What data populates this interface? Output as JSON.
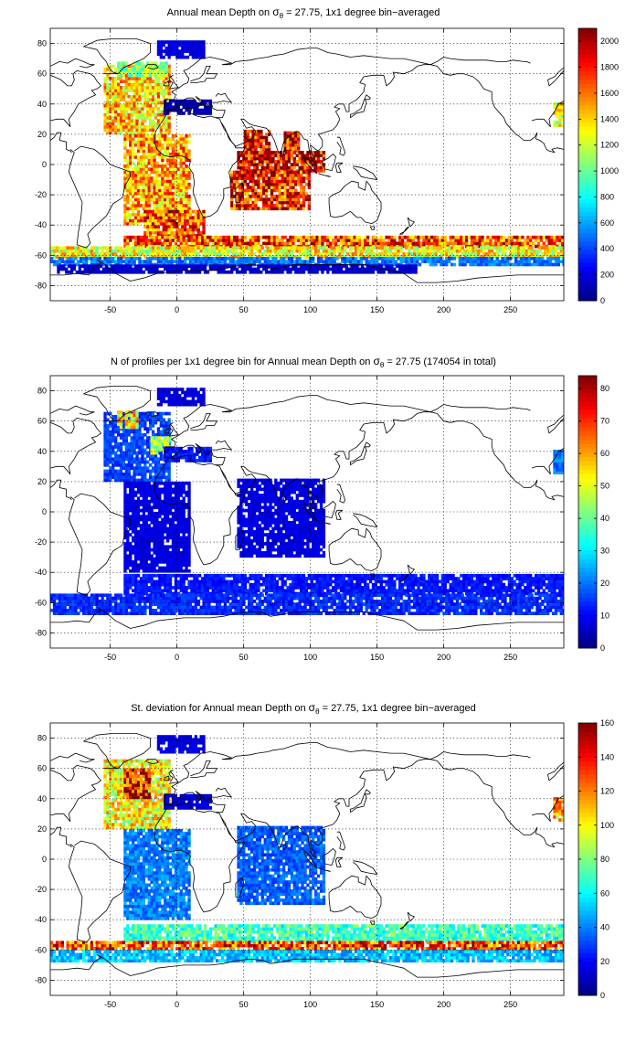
{
  "chart_data": [
    {
      "type": "heatmap",
      "title_prefix": "Annual mean Depth on",
      "title_symbol": "σ",
      "title_subscript": "θ",
      "title_suffix": "= 27.75, 1x1 degree bin−averaged",
      "x_ticks": [
        -50,
        0,
        50,
        100,
        150,
        200,
        250
      ],
      "y_ticks": [
        80,
        60,
        40,
        20,
        0,
        -20,
        -40,
        -60,
        -80
      ],
      "xlim": [
        -95,
        290
      ],
      "ylim": [
        -90,
        90
      ],
      "grid": true,
      "colorbar": {
        "min": 0,
        "max": 2100,
        "ticks": [
          0,
          200,
          400,
          600,
          800,
          1000,
          1200,
          1400,
          1600,
          1800,
          2000
        ],
        "colormap": "jet"
      },
      "regions": [
        {
          "x0": -55,
          "x1": -5,
          "y0": 20,
          "y1": 65,
          "v": 1420
        },
        {
          "x0": -45,
          "x1": -8,
          "y0": 58,
          "y1": 68,
          "v": 1100
        },
        {
          "x0": -40,
          "x1": 10,
          "y0": -40,
          "y1": 20,
          "v": 1500
        },
        {
          "x0": -25,
          "x1": 20,
          "y0": -48,
          "y1": -30,
          "v": 1700
        },
        {
          "x0": 50,
          "x1": 70,
          "y0": 5,
          "y1": 22,
          "v": 1950
        },
        {
          "x0": 80,
          "x1": 92,
          "y0": 8,
          "y1": 22,
          "v": 1900
        },
        {
          "x0": 45,
          "x1": 110,
          "y0": -5,
          "y1": 8,
          "v": 1950
        },
        {
          "x0": 40,
          "x1": 100,
          "y0": -30,
          "y1": -5,
          "v": 1800
        },
        {
          "x0": -40,
          "x1": 290,
          "y0": -55,
          "y1": -48,
          "v": 1700
        },
        {
          "x0": -95,
          "x1": 290,
          "y0": -62,
          "y1": -55,
          "v": 1300
        },
        {
          "x0": -95,
          "x1": 290,
          "y0": -67,
          "y1": -62,
          "v": 500
        },
        {
          "x0": -90,
          "x1": 180,
          "y0": -72,
          "y1": -67,
          "v": 150
        },
        {
          "x0": -10,
          "x1": 25,
          "y0": 33,
          "y1": 42,
          "v": 100
        },
        {
          "x0": -15,
          "x1": 20,
          "y0": 70,
          "y1": 82,
          "v": 200
        },
        {
          "x0": 282,
          "x1": 290,
          "y0": 25,
          "y1": 40,
          "v": 1250
        }
      ]
    },
    {
      "type": "heatmap",
      "title_prefix": "N of profiles per 1x1 degree bin for Annual mean Depth on",
      "title_symbol": "σ",
      "title_subscript": "θ",
      "title_suffix": "= 27.75 (174054 in total)",
      "x_ticks": [
        -50,
        0,
        50,
        100,
        150,
        200,
        250
      ],
      "y_ticks": [
        80,
        60,
        40,
        20,
        0,
        -20,
        -40,
        -60,
        -80
      ],
      "xlim": [
        -95,
        290
      ],
      "ylim": [
        -90,
        90
      ],
      "grid": true,
      "colorbar": {
        "min": 0,
        "max": 84,
        "ticks": [
          0,
          10,
          20,
          30,
          40,
          50,
          60,
          70,
          80
        ],
        "colormap": "jet"
      },
      "regions": [
        {
          "x0": -55,
          "x1": -5,
          "y0": 20,
          "y1": 65,
          "v": 16
        },
        {
          "x0": -45,
          "x1": -30,
          "y0": 55,
          "y1": 66,
          "v": 55
        },
        {
          "x0": -20,
          "x1": -5,
          "y0": 38,
          "y1": 50,
          "v": 45
        },
        {
          "x0": -40,
          "x1": 10,
          "y0": -40,
          "y1": 20,
          "v": 8
        },
        {
          "x0": 45,
          "x1": 110,
          "y0": -30,
          "y1": 22,
          "v": 8
        },
        {
          "x0": -40,
          "x1": 290,
          "y0": -55,
          "y1": -42,
          "v": 12
        },
        {
          "x0": -95,
          "x1": 290,
          "y0": -68,
          "y1": -55,
          "v": 14
        },
        {
          "x0": -10,
          "x1": 25,
          "y0": 33,
          "y1": 42,
          "v": 12
        },
        {
          "x0": -15,
          "x1": 20,
          "y0": 70,
          "y1": 82,
          "v": 8
        },
        {
          "x0": 282,
          "x1": 290,
          "y0": 25,
          "y1": 40,
          "v": 20
        }
      ]
    },
    {
      "type": "heatmap",
      "title_prefix": "St. deviation for Annual mean Depth on",
      "title_symbol": "σ",
      "title_subscript": "θ",
      "title_suffix": "= 27.75, 1x1 degree bin−averaged",
      "x_ticks": [
        -50,
        0,
        50,
        100,
        150,
        200,
        250
      ],
      "y_ticks": [
        80,
        60,
        40,
        20,
        0,
        -20,
        -40,
        -60,
        -80
      ],
      "xlim": [
        -95,
        290
      ],
      "ylim": [
        -90,
        90
      ],
      "grid": true,
      "colorbar": {
        "min": 0,
        "max": 160,
        "ticks": [
          0,
          20,
          40,
          60,
          80,
          100,
          120,
          140,
          160
        ],
        "colormap": "jet"
      },
      "regions": [
        {
          "x0": -55,
          "x1": -5,
          "y0": 20,
          "y1": 65,
          "v": 100
        },
        {
          "x0": -40,
          "x1": -20,
          "y0": 40,
          "y1": 60,
          "v": 140
        },
        {
          "x0": -40,
          "x1": 10,
          "y0": -40,
          "y1": 20,
          "v": 40
        },
        {
          "x0": 45,
          "x1": 110,
          "y0": -30,
          "y1": 22,
          "v": 35
        },
        {
          "x0": -40,
          "x1": 290,
          "y0": -55,
          "y1": -44,
          "v": 70
        },
        {
          "x0": -95,
          "x1": 290,
          "y0": -60,
          "y1": -55,
          "v": 130
        },
        {
          "x0": -95,
          "x1": 290,
          "y0": -68,
          "y1": -60,
          "v": 50
        },
        {
          "x0": -10,
          "x1": 25,
          "y0": 33,
          "y1": 42,
          "v": 15
        },
        {
          "x0": -15,
          "x1": 20,
          "y0": 70,
          "y1": 82,
          "v": 15
        },
        {
          "x0": 282,
          "x1": 290,
          "y0": 25,
          "y1": 40,
          "v": 110
        }
      ]
    }
  ]
}
